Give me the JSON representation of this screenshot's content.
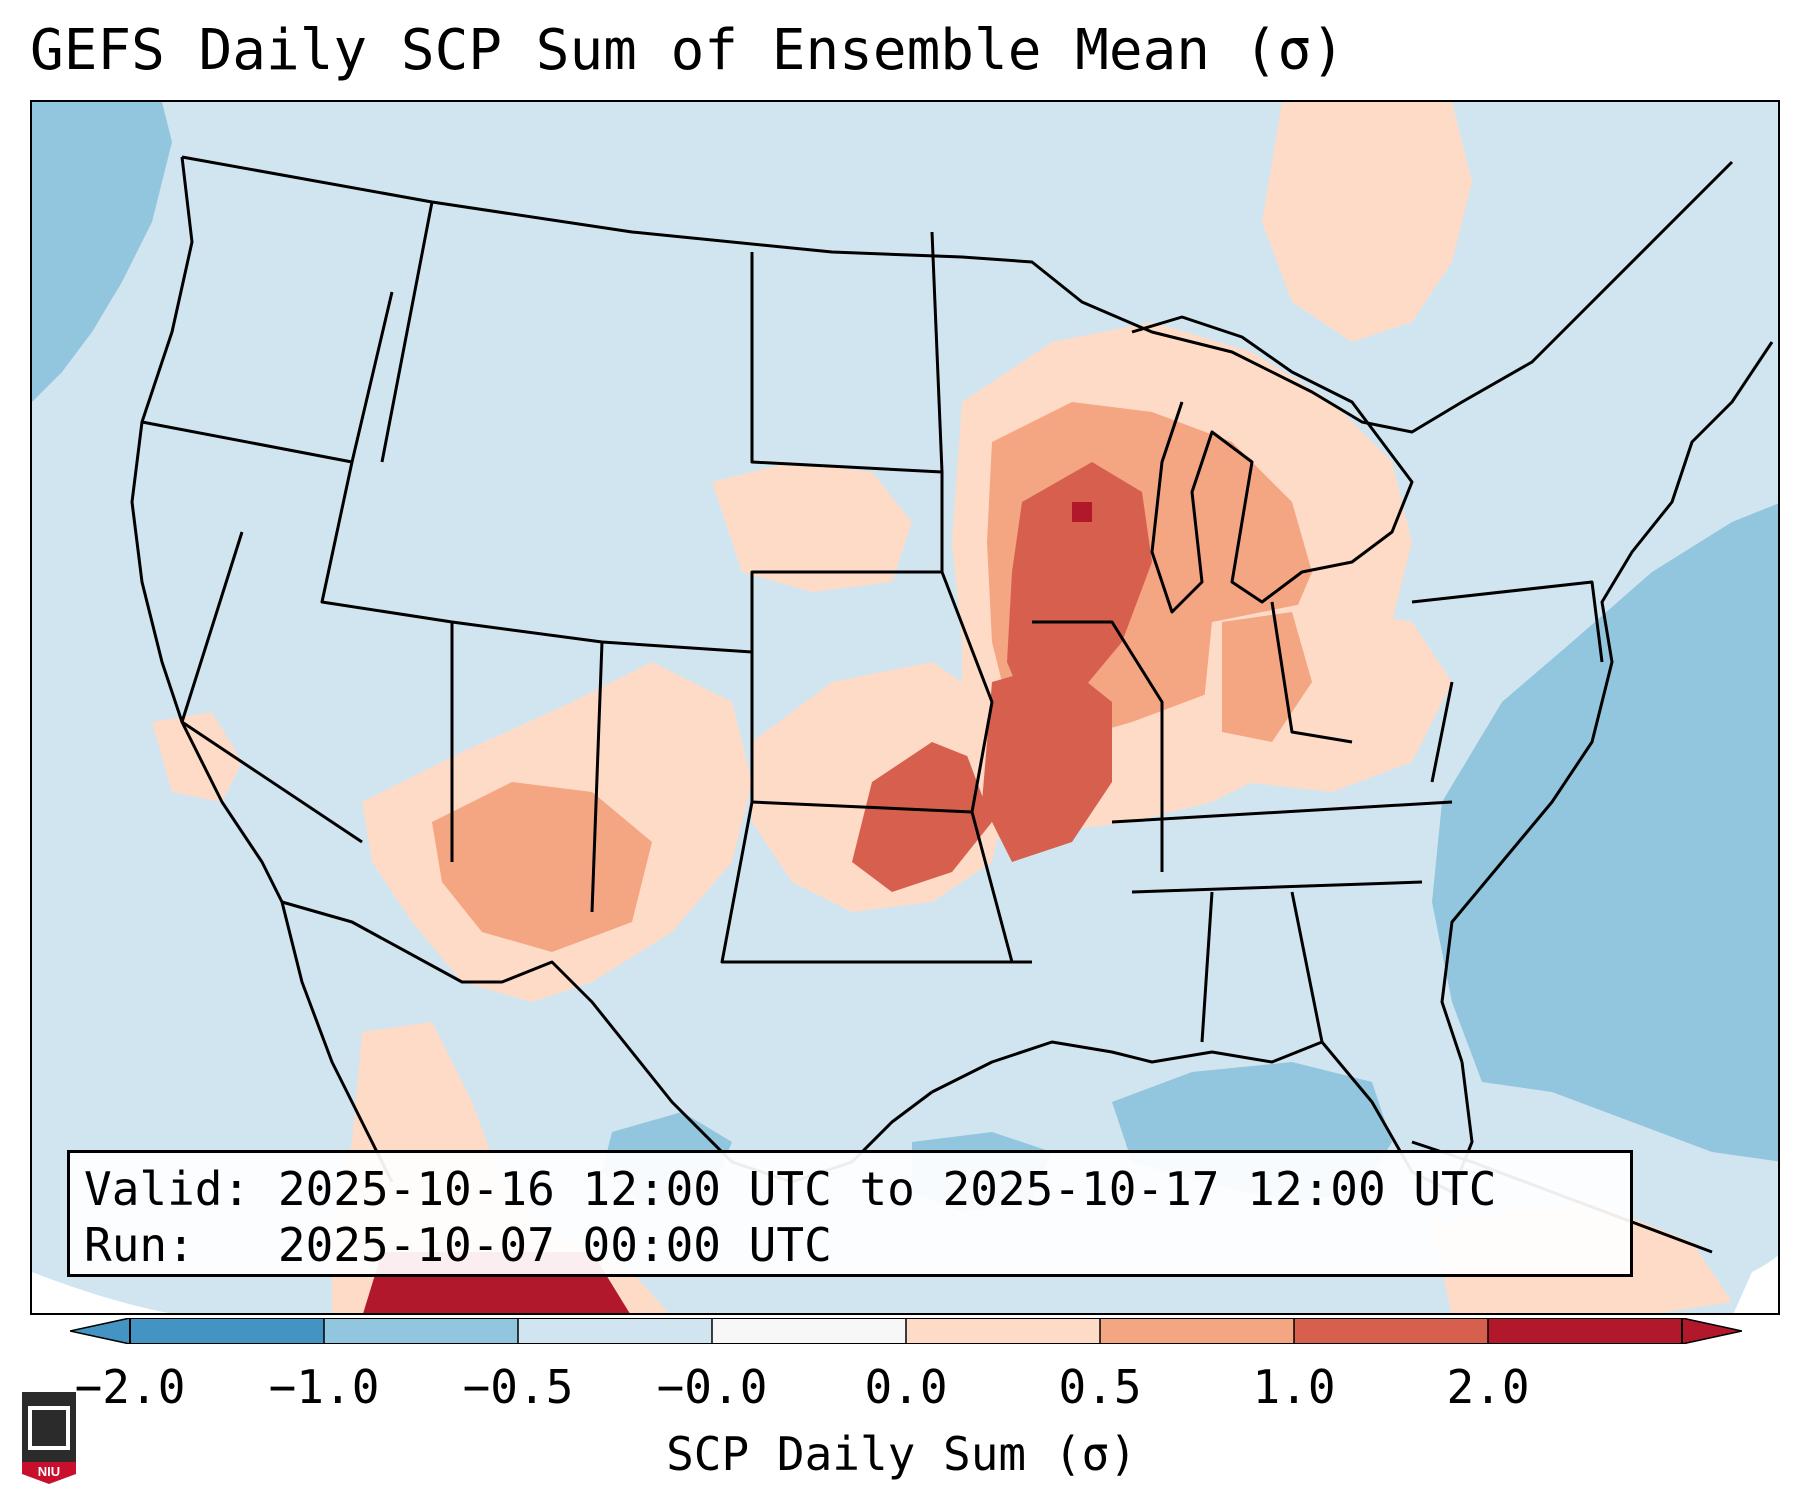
{
  "title": "GEFS Daily SCP Sum of Ensemble Mean (σ)",
  "info": {
    "valid_label": "Valid:",
    "valid_value": "2025-10-16 12:00 UTC to 2025-10-17 12:00 UTC",
    "run_label": "Run:",
    "run_value": "2025-10-07 00:00 UTC"
  },
  "colorbar": {
    "label": "SCP Daily Sum (σ)",
    "ticks": [
      "−2.0",
      "−1.0",
      "−0.5",
      "−0.0",
      "0.0",
      "0.5",
      "1.0",
      "2.0"
    ],
    "colors": [
      "#4393c3",
      "#92c5de",
      "#d1e5f0",
      "#f7f7f7",
      "#fddbc7",
      "#f4a582",
      "#d6604d",
      "#b2182b"
    ]
  },
  "logo": {
    "text": "NIU"
  },
  "map": {
    "region": "Contiguous United States",
    "anomaly_areas": [
      {
        "name": "Upper Midwest / Great Lakes",
        "level": "1.0"
      },
      {
        "name": "Mid-Mississippi Valley",
        "level": "1.0"
      },
      {
        "name": "Southern Plains",
        "level": "0.5"
      },
      {
        "name": "Southwest",
        "level": "0.5"
      },
      {
        "name": "Ohio Valley",
        "level": "0.5"
      },
      {
        "name": "Western Atlantic",
        "level": "-0.5"
      },
      {
        "name": "Gulf of Mexico",
        "level": "-0.5"
      }
    ]
  }
}
